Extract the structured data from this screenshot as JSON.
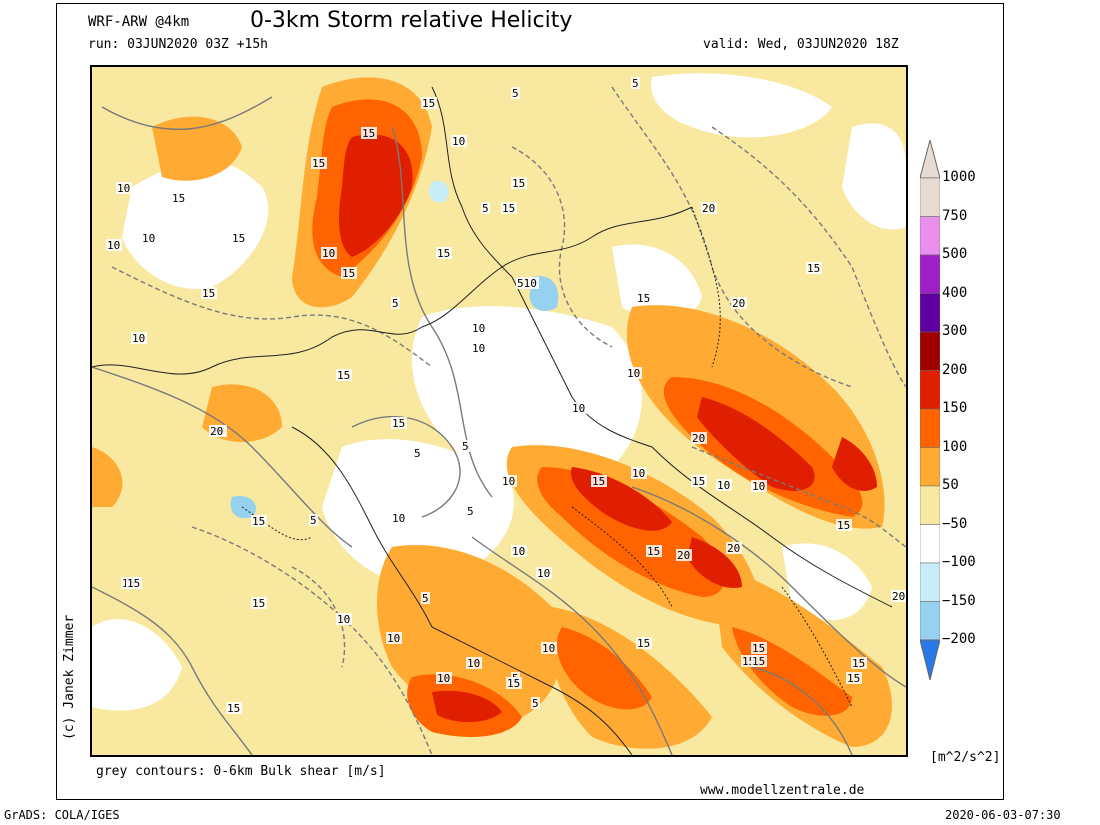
{
  "header": {
    "model": "WRF-ARW @4km",
    "title": "0-3km Storm relative Helicity",
    "run": "run: 03JUN2020 03Z +15h",
    "valid": "valid: Wed, 03JUN2020 18Z"
  },
  "copyright": "(c) Janek Zimmer",
  "contour_note": "grey contours: 0-6km Bulk shear [m/s]",
  "website": "www.modellzentrale.de",
  "footer": {
    "software": "GrADS: COLA/IGES",
    "timestamp": "2020-06-03-07:30"
  },
  "legend": {
    "unit": "[m^2/s^2]",
    "levels": [
      {
        "label": "1000",
        "color": "#e8dcd2"
      },
      {
        "label": "750",
        "color": "#e890ec"
      },
      {
        "label": "500",
        "color": "#a020c8"
      },
      {
        "label": "400",
        "color": "#6000a0"
      },
      {
        "label": "300",
        "color": "#a00000"
      },
      {
        "label": "200",
        "color": "#e01e00"
      },
      {
        "label": "150",
        "color": "#ff6400"
      },
      {
        "label": "100",
        "color": "#ffaa32"
      },
      {
        "label": "50",
        "color": "#f8e8a0"
      },
      {
        "label": "−50",
        "color": "#ffffff"
      },
      {
        "label": "−100",
        "color": "#c8ecf8"
      },
      {
        "label": "−150",
        "color": "#96d2f0"
      },
      {
        "label": "−200",
        "color": "#50a0f0"
      }
    ],
    "below_color": "#2878e8",
    "above_color": "#e8dcd2"
  },
  "contour_labels": [
    "5",
    "10",
    "15",
    "20"
  ],
  "map_labels": [
    {
      "t": "15"
    },
    {
      "t": "15"
    },
    {
      "t": "10"
    },
    {
      "t": "5"
    },
    {
      "t": "15"
    },
    {
      "t": "5"
    },
    {
      "t": "10"
    },
    {
      "t": "15"
    },
    {
      "t": "15"
    },
    {
      "t": "10"
    },
    {
      "t": "10"
    },
    {
      "t": "15"
    },
    {
      "t": "10"
    },
    {
      "t": "15"
    },
    {
      "t": "5"
    },
    {
      "t": "15"
    },
    {
      "t": "5"
    },
    {
      "t": "10"
    },
    {
      "t": "510"
    },
    {
      "t": "15"
    },
    {
      "t": "20"
    },
    {
      "t": "15"
    },
    {
      "t": "20"
    },
    {
      "t": "10"
    },
    {
      "t": "15"
    },
    {
      "t": "10"
    },
    {
      "t": "15"
    },
    {
      "t": "10"
    },
    {
      "t": "10"
    },
    {
      "t": "20"
    },
    {
      "t": "5"
    },
    {
      "t": "15"
    },
    {
      "t": "15"
    },
    {
      "t": "20"
    },
    {
      "t": "20"
    },
    {
      "t": "10"
    },
    {
      "t": "10"
    },
    {
      "t": "15"
    },
    {
      "t": "15"
    },
    {
      "t": "5"
    },
    {
      "t": "10"
    },
    {
      "t": "20"
    },
    {
      "t": "15"
    },
    {
      "t": "5"
    },
    {
      "t": "10"
    },
    {
      "t": "20"
    },
    {
      "t": "10"
    },
    {
      "t": "5"
    },
    {
      "t": "15"
    },
    {
      "t": "15"
    },
    {
      "t": "10"
    },
    {
      "t": "15"
    },
    {
      "t": "10"
    },
    {
      "t": "10"
    },
    {
      "t": "15"
    },
    {
      "t": "5"
    },
    {
      "t": "15"
    },
    {
      "t": "15"
    },
    {
      "t": "15"
    },
    {
      "t": "20"
    },
    {
      "t": "15"
    },
    {
      "t": "10"
    },
    {
      "t": "10"
    },
    {
      "t": "15"
    },
    {
      "t": "15"
    },
    {
      "t": "5"
    },
    {
      "t": "15"
    },
    {
      "t": "15"
    },
    {
      "t": "15"
    },
    {
      "t": "10"
    },
    {
      "t": "10"
    },
    {
      "t": "5"
    }
  ]
}
